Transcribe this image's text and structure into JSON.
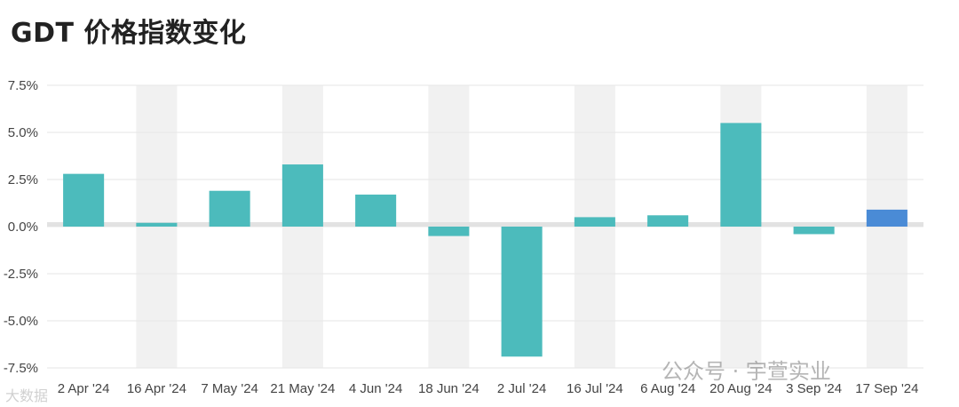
{
  "title": "GDT 价格指数变化",
  "chart_data": {
    "type": "bar",
    "title": "GDT 价格指数变化",
    "categories": [
      "2 Apr '24",
      "16 Apr '24",
      "7 May '24",
      "21 May '24",
      "4 Jun '24",
      "18 Jun '24",
      "2 Jul '24",
      "16 Jul '24",
      "6 Aug '24",
      "20 Aug '24",
      "3 Sep '24",
      "17 Sep '24"
    ],
    "values": [
      2.8,
      0.2,
      1.9,
      3.3,
      1.7,
      -0.5,
      -6.9,
      0.5,
      0.6,
      5.5,
      -0.4,
      0.9
    ],
    "ylim": [
      -7.5,
      7.5
    ],
    "yticks": [
      7.5,
      5.0,
      2.5,
      0.0,
      -2.5,
      -5.0,
      -7.5
    ],
    "ytick_labels": [
      "7.5%",
      "5.0%",
      "2.5%",
      "0.0%",
      "-2.5%",
      "-5.0%",
      "-7.5%"
    ],
    "grid": true,
    "colors": {
      "bar": "#4cbbbc",
      "highlight": "#4a8bd6",
      "band": "#f1f1f1",
      "zero_line": "#e2e2e2"
    },
    "highlight_index": 11
  },
  "watermark": {
    "main": "公众号 · 宇萱实业",
    "small": "大数据"
  }
}
